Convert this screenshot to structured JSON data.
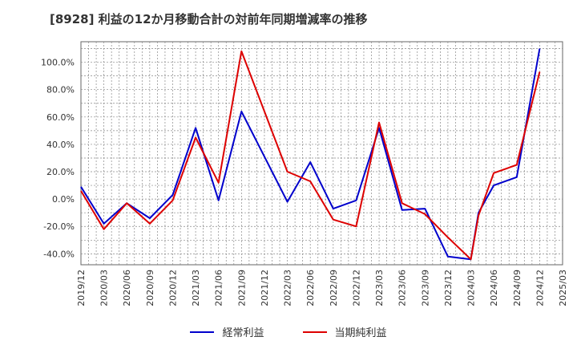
{
  "chart_data": {
    "type": "line",
    "title": "[8928]  利益の12か月移動合計の対前年同期増減率の推移",
    "x_tick_labels": [
      "2019/12",
      "2020/03",
      "2020/06",
      "2020/09",
      "2020/12",
      "2021/03",
      "2021/06",
      "2021/09",
      "2021/12",
      "2022/03",
      "2022/06",
      "2022/09",
      "2022/12",
      "2023/03",
      "2023/06",
      "2023/09",
      "2023/12",
      "2024/03",
      "2024/06",
      "2024/09",
      "2024/12",
      "2025/03"
    ],
    "y_tick_labels": [
      "-40.0%",
      "-20.0%",
      "0.0%",
      "20.0%",
      "40.0%",
      "60.0%",
      "80.0%",
      "100.0%"
    ],
    "y_ticks": [
      -40,
      -20,
      0,
      20,
      40,
      60,
      80,
      100
    ],
    "ylim": [
      -48,
      115
    ],
    "series": [
      {
        "name": "経常利益",
        "color": "#0000cc",
        "values": [
          9,
          -18,
          -3,
          -14,
          3,
          52,
          -1,
          64,
          31,
          -2,
          27,
          -7,
          -1,
          52,
          -8,
          -7,
          -42,
          -44,
          -10,
          10,
          16,
          110
        ]
      },
      {
        "name": "当期純利益",
        "color": "#dd0000",
        "values": [
          6,
          -22,
          -3,
          -18,
          -1,
          45,
          12,
          108,
          64,
          20,
          13,
          -15,
          -20,
          56,
          -3,
          -11,
          -28,
          -44,
          -12,
          19,
          25,
          93
        ]
      }
    ],
    "x_points": [
      "2019/12",
      "2020/03",
      "2020/06",
      "2020/09",
      "2020/12",
      "2021/03",
      "2021/06",
      "2021/09",
      "2021/12",
      "2022/03",
      "2022/06",
      "2022/09",
      "2022/12",
      "2023/03",
      "2023/06",
      "2023/09",
      "2023/12",
      "2024/03",
      "2024/04",
      "2024/06",
      "2024/09",
      "2024/12"
    ],
    "legend": [
      "経常利益",
      "当期純利益"
    ],
    "grid": true
  }
}
